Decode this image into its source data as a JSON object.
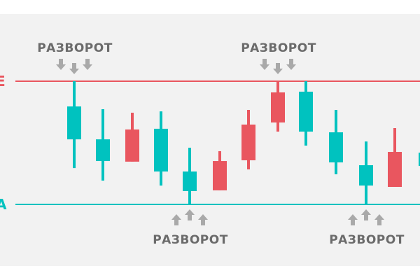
{
  "colors": {
    "background": "#f2f2f2",
    "resistance": "#e9565f",
    "support": "#00c2bf",
    "bullish": "#00c2bf",
    "bearish": "#e9565f",
    "arrow": "#a9a9a9",
    "label": "#6b6b6b"
  },
  "levels": {
    "resistance": {
      "value": 100,
      "edge_letter": "E"
    },
    "support": {
      "value": 0,
      "edge_letter": "A"
    }
  },
  "candles": [
    {
      "high": 100,
      "low": 29.5,
      "body_top": 79.5,
      "body_bottom": 52.8,
      "color": "teal"
    },
    {
      "high": 77.3,
      "low": 19.3,
      "body_top": 52.8,
      "body_bottom": 35.2,
      "color": "teal"
    },
    {
      "high": 74.4,
      "low": 34.7,
      "body_top": 60.8,
      "body_bottom": 34.7,
      "color": "red"
    },
    {
      "high": 75.5,
      "low": 15.3,
      "body_top": 61.4,
      "body_bottom": 26.7,
      "color": "teal"
    },
    {
      "high": 46,
      "low": 0,
      "body_top": 26.7,
      "body_bottom": 10.8,
      "color": "teal"
    },
    {
      "high": 43.2,
      "low": 11.4,
      "body_top": 35.2,
      "body_bottom": 11.4,
      "color": "red"
    },
    {
      "high": 76.7,
      "low": 28.4,
      "body_top": 64.8,
      "body_bottom": 35.8,
      "color": "red"
    },
    {
      "high": 100,
      "low": 59.1,
      "body_top": 90.9,
      "body_bottom": 66.5,
      "color": "red"
    },
    {
      "high": 100,
      "low": 47.7,
      "body_top": 91.5,
      "body_bottom": 59.1,
      "color": "teal"
    },
    {
      "high": 76.7,
      "low": 24.4,
      "body_top": 58.5,
      "body_bottom": 34.1,
      "color": "teal"
    },
    {
      "high": 51.1,
      "low": 0,
      "body_top": 31.8,
      "body_bottom": 15.3,
      "color": "teal"
    },
    {
      "high": 61.9,
      "low": 14.2,
      "body_top": 42.6,
      "body_bottom": 14.2,
      "color": "red"
    },
    {
      "high": 42,
      "low": 31.2,
      "body_top": 42,
      "body_bottom": 31.2,
      "color": "teal"
    }
  ],
  "reversals": [
    {
      "label": "РАЗВОРОТ",
      "direction": "down",
      "candle": 1
    },
    {
      "label": "РАЗВОРОТ",
      "direction": "down",
      "candle": 8
    },
    {
      "label": "РАЗВОРОТ",
      "direction": "up",
      "candle": 5
    },
    {
      "label": "РАЗВОРОТ",
      "direction": "up",
      "candle": 11
    }
  ]
}
